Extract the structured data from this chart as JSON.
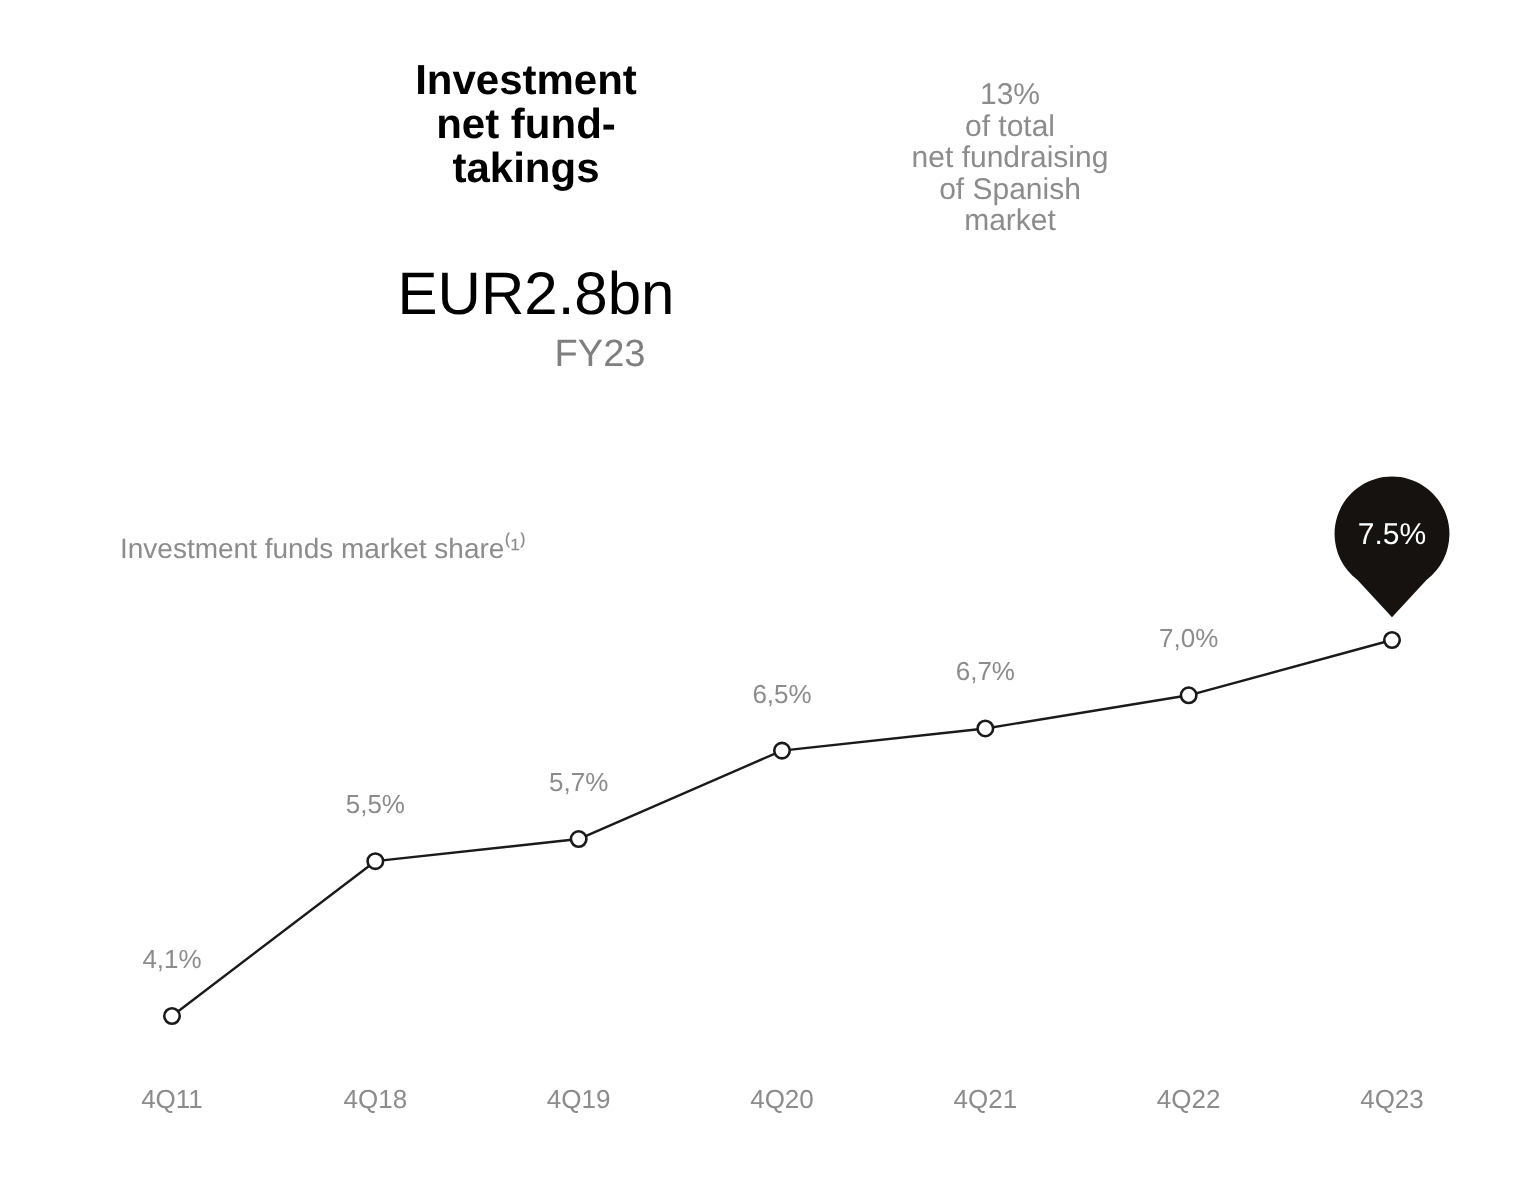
{
  "chart_data": {
    "type": "line",
    "title": "Investment funds market share⁽¹⁾",
    "categories": [
      "4Q11",
      "4Q18",
      "4Q19",
      "4Q20",
      "4Q21",
      "4Q22",
      "4Q23"
    ],
    "series": [
      {
        "color": "#1a1a1a",
        "values": [
          4.1,
          5.5,
          5.7,
          6.5,
          6.7,
          7.0,
          7.5
        ],
        "value_labels": [
          "4,1%",
          "5,5%",
          "5,7%",
          "6,5%",
          "6,7%",
          "7,0%",
          "7.5%"
        ]
      }
    ],
    "marker": "circle",
    "line_style": "solid",
    "annotations": [
      "Investment\nnet fund-\ntakings",
      "EUR2.8bn",
      "FY23",
      "13%\nof total\nnet fundraising\nof Spanish\nmarket"
    ]
  }
}
